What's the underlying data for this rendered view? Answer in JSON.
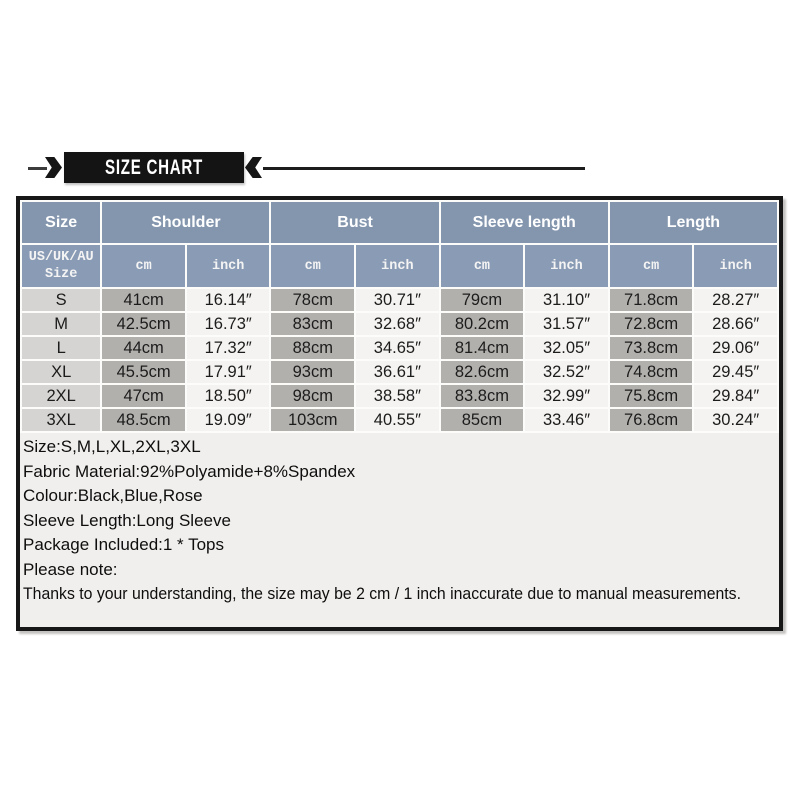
{
  "banner": {
    "title": "SIZE CHART"
  },
  "size_table": {
    "columns": [
      "Size",
      "Shoulder",
      "Bust",
      "Sleeve length",
      "Length"
    ],
    "subheader_size_label": "US/UK/AU\nSize",
    "units": [
      "cm",
      "inch",
      "cm",
      "inch",
      "cm",
      "inch",
      "cm",
      "inch"
    ],
    "rows": [
      {
        "size": "S",
        "values": [
          "41cm",
          "16.14″",
          "78cm",
          "30.71″",
          "79cm",
          "31.10″",
          "71.8cm",
          "28.27″"
        ]
      },
      {
        "size": "M",
        "values": [
          "42.5cm",
          "16.73″",
          "83cm",
          "32.68″",
          "80.2cm",
          "31.57″",
          "72.8cm",
          "28.66″"
        ]
      },
      {
        "size": "L",
        "values": [
          "44cm",
          "17.32″",
          "88cm",
          "34.65″",
          "81.4cm",
          "32.05″",
          "73.8cm",
          "29.06″"
        ]
      },
      {
        "size": "XL",
        "values": [
          "45.5cm",
          "17.91″",
          "93cm",
          "36.61″",
          "82.6cm",
          "32.52″",
          "74.8cm",
          "29.45″"
        ]
      },
      {
        "size": "2XL",
        "values": [
          "47cm",
          "18.50″",
          "98cm",
          "38.58″",
          "83.8cm",
          "32.99″",
          "75.8cm",
          "29.84″"
        ]
      },
      {
        "size": "3XL",
        "values": [
          "48.5cm",
          "19.09″",
          "103cm",
          "40.55″",
          "85cm",
          "33.46″",
          "76.8cm",
          "30.24″"
        ]
      }
    ]
  },
  "notes": {
    "lines": [
      "Size:S,M,L,XL,2XL,3XL",
      "Fabric Material:92%Polyamide+8%Spandex",
      "Colour:Black,Blue,Rose",
      "Sleeve Length:Long Sleeve",
      "Package Included:1 * Tops",
      "Please note:",
      "Thanks to your understanding, the size may be 2 cm / 1 inch inaccurate due to manual measurements."
    ]
  },
  "colors": {
    "header_blue": "#8496ae",
    "subheader_blue": "#8a9cb5",
    "size_col": "#d6d4d2",
    "cm_col": "#b2b0ad",
    "inch_col": "#f4f3f1",
    "notes_bg": "#f1efed",
    "ribbon_black": "#141414"
  }
}
